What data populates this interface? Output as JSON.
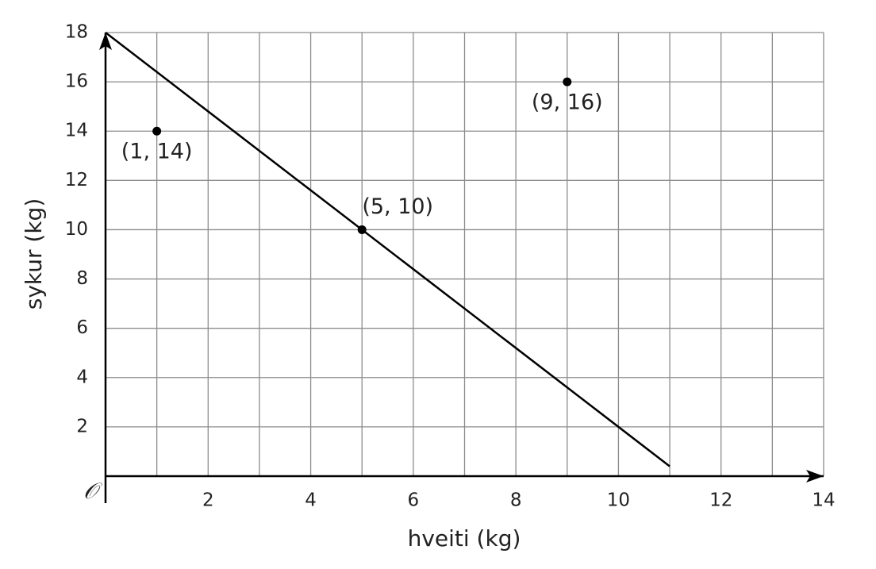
{
  "chart_data": {
    "type": "scatter",
    "x_label": "hveiti (kg)",
    "y_label": "sykur (kg)",
    "origin_label": "𝒪",
    "xlim": [
      0,
      14
    ],
    "ylim": [
      0,
      18
    ],
    "xticks": [
      2,
      4,
      6,
      8,
      10,
      12,
      14
    ],
    "x_minor_ticks": [
      1,
      3,
      5,
      7,
      9,
      11,
      13
    ],
    "yticks": [
      2,
      4,
      6,
      8,
      10,
      12,
      14,
      16,
      18
    ],
    "grid": true,
    "series": [
      {
        "type": "scatter",
        "color": "#000000",
        "x": [
          1,
          5,
          9
        ],
        "values": [
          14,
          10,
          16
        ],
        "value_labels": [
          "(1, 14)",
          "(5, 10)",
          "(9, 16)"
        ]
      },
      {
        "type": "line",
        "color": "#000000",
        "x": [
          0,
          11
        ],
        "values": [
          18,
          0.4
        ]
      }
    ]
  }
}
